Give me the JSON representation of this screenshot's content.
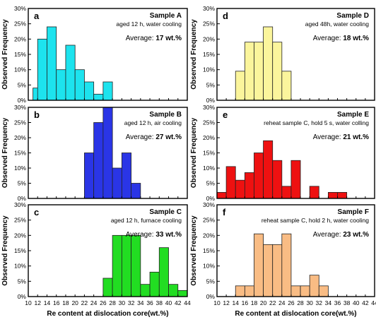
{
  "chart_data": [
    {
      "type": "bar",
      "panel_label": "a",
      "title": "Sample A",
      "subtitle": "aged 12 h, water cooling",
      "average_label": "Average: ",
      "average_value": "17 wt.%",
      "x": [
        11,
        12,
        14,
        16,
        18,
        20,
        22,
        24,
        26
      ],
      "values": [
        4,
        20,
        24,
        10,
        18,
        10,
        6,
        2,
        6
      ],
      "color": "#1de3ee",
      "ylim": [
        0,
        30
      ],
      "xlim": [
        10,
        44
      ],
      "ylabel": "Observed Frequency"
    },
    {
      "type": "bar",
      "panel_label": "b",
      "title": "Sample B",
      "subtitle": "aged 12 h, air cooling",
      "average_label": "Average: ",
      "average_value": "27 wt.%",
      "x": [
        22,
        24,
        26,
        28,
        30,
        32
      ],
      "values": [
        15,
        25,
        30,
        10,
        15,
        5
      ],
      "color": "#2a35e6",
      "ylim": [
        0,
        30
      ],
      "xlim": [
        10,
        44
      ],
      "ylabel": "Observed Frequency"
    },
    {
      "type": "bar",
      "panel_label": "c",
      "title": "Sample C",
      "subtitle": "aged 12 h, furnace cooling",
      "average_label": "Average: ",
      "average_value": "33 wt.%",
      "x": [
        26,
        28,
        30,
        32,
        34,
        36,
        38,
        40,
        42
      ],
      "values": [
        6,
        20,
        20,
        20,
        4,
        8,
        16,
        4,
        2
      ],
      "color": "#22dd22",
      "ylim": [
        0,
        30
      ],
      "xlim": [
        10,
        44
      ],
      "ylabel": "Observed Frequency",
      "xlabel": "Re content at dislocation core(wt.%)",
      "xticks": [
        "10",
        "12",
        "14",
        "16",
        "18",
        "20",
        "22",
        "24",
        "26",
        "28",
        "30",
        "32",
        "34",
        "36",
        "38",
        "40",
        "42",
        "44"
      ]
    },
    {
      "type": "bar",
      "panel_label": "d",
      "title": "Sample D",
      "subtitle": "aged 48h, water cooling",
      "average_label": "Average: ",
      "average_value": "18 wt.%",
      "x": [
        14,
        16,
        18,
        20,
        22,
        24
      ],
      "values": [
        9.5,
        19,
        19,
        24,
        19,
        9.5
      ],
      "color": "#fbf59c",
      "ylim": [
        0,
        30
      ],
      "xlim": [
        10,
        44
      ],
      "ylabel": "Observed Frequency"
    },
    {
      "type": "bar",
      "panel_label": "e",
      "title": "Sample E",
      "subtitle": "reheat sample C, hold 5 s, water colling",
      "average_label": "Average: ",
      "average_value": "21 wt.%",
      "x": [
        10,
        12,
        14,
        16,
        18,
        20,
        22,
        24,
        26,
        30,
        34,
        36
      ],
      "values": [
        2,
        10.5,
        6,
        8.5,
        15,
        19,
        12.5,
        4,
        12.5,
        4,
        2,
        2
      ],
      "color": "#ee1111",
      "ylim": [
        0,
        30
      ],
      "xlim": [
        10,
        44
      ],
      "ylabel": "Observed Frequency"
    },
    {
      "type": "bar",
      "panel_label": "f",
      "title": "Sample F",
      "subtitle": "reheat sample C, hold 2 h, water cooling",
      "average_label": "Average: ",
      "average_value": "23 wt.%",
      "x": [
        14,
        16,
        18,
        20,
        22,
        24,
        26,
        28,
        30,
        32
      ],
      "values": [
        3.5,
        3.5,
        20.5,
        17,
        17,
        20.5,
        3.5,
        3.5,
        7,
        3.5
      ],
      "color": "#f9bc84",
      "ylim": [
        0,
        30
      ],
      "xlim": [
        10,
        44
      ],
      "ylabel": "Observed Frequency",
      "xlabel": "Re content at dislocation core(wt.%)",
      "xticks": [
        "10",
        "12",
        "14",
        "16",
        "18",
        "20",
        "22",
        "24",
        "26",
        "28",
        "30",
        "32",
        "34",
        "36",
        "38",
        "40",
        "42",
        "44"
      ]
    }
  ],
  "yticks": [
    "0%",
    "5%",
    "10%",
    "15%",
    "20%",
    "25%",
    "30%"
  ]
}
